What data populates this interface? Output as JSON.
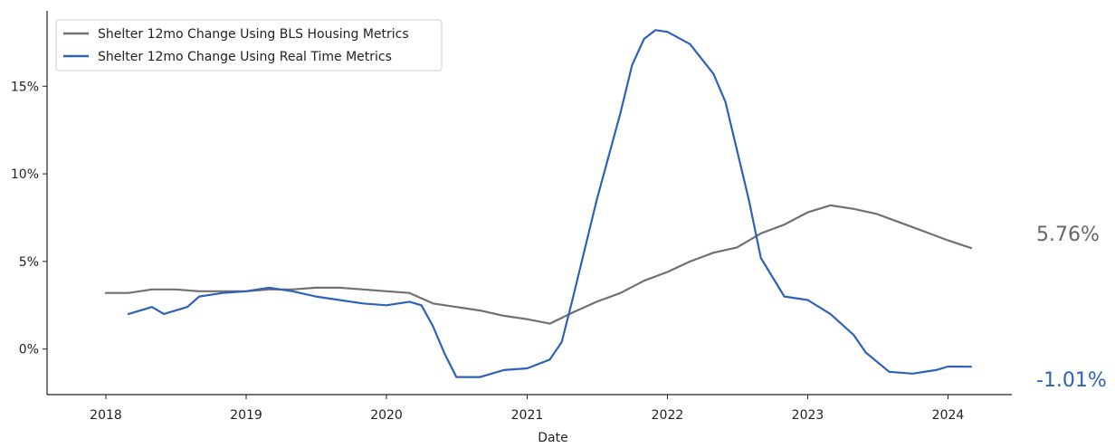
{
  "chart_data": {
    "type": "line",
    "xlabel": "Date",
    "ylabel": "",
    "xlim": [
      "2017-08-01",
      "2024-06-15"
    ],
    "ylim": [
      -2.6,
      19.3
    ],
    "x_ticks": [
      {
        "date": "2018-01-01",
        "label": "2018"
      },
      {
        "date": "2019-01-01",
        "label": "2019"
      },
      {
        "date": "2020-01-01",
        "label": "2020"
      },
      {
        "date": "2021-01-01",
        "label": "2021"
      },
      {
        "date": "2022-01-01",
        "label": "2022"
      },
      {
        "date": "2023-01-01",
        "label": "2023"
      },
      {
        "date": "2024-01-01",
        "label": "2024"
      }
    ],
    "y_ticks": [
      {
        "value": 0,
        "label": "0%"
      },
      {
        "value": 5,
        "label": "5%"
      },
      {
        "value": 10,
        "label": "10%"
      },
      {
        "value": 15,
        "label": "15%"
      }
    ],
    "grid": false,
    "legend_position": "top-left",
    "series": [
      {
        "name": "Shelter 12mo Change Using BLS Housing Metrics",
        "color": "#707070",
        "end_label": "5.76%",
        "end_label_color": "#666666",
        "points": [
          [
            "2018-01-01",
            3.2
          ],
          [
            "2018-03-01",
            3.2
          ],
          [
            "2018-05-01",
            3.4
          ],
          [
            "2018-07-01",
            3.4
          ],
          [
            "2018-09-01",
            3.3
          ],
          [
            "2018-11-01",
            3.3
          ],
          [
            "2019-01-01",
            3.3
          ],
          [
            "2019-03-01",
            3.4
          ],
          [
            "2019-05-01",
            3.4
          ],
          [
            "2019-07-01",
            3.5
          ],
          [
            "2019-09-01",
            3.5
          ],
          [
            "2019-11-01",
            3.4
          ],
          [
            "2020-01-01",
            3.3
          ],
          [
            "2020-03-01",
            3.2
          ],
          [
            "2020-05-01",
            2.6
          ],
          [
            "2020-07-01",
            2.4
          ],
          [
            "2020-09-01",
            2.2
          ],
          [
            "2020-11-01",
            1.9
          ],
          [
            "2021-01-01",
            1.7
          ],
          [
            "2021-03-01",
            1.45
          ],
          [
            "2021-05-01",
            2.1
          ],
          [
            "2021-07-01",
            2.7
          ],
          [
            "2021-09-01",
            3.2
          ],
          [
            "2021-11-01",
            3.9
          ],
          [
            "2022-01-01",
            4.4
          ],
          [
            "2022-03-01",
            5.0
          ],
          [
            "2022-05-01",
            5.5
          ],
          [
            "2022-07-01",
            5.8
          ],
          [
            "2022-09-01",
            6.6
          ],
          [
            "2022-11-01",
            7.1
          ],
          [
            "2023-01-01",
            7.8
          ],
          [
            "2023-03-01",
            8.2
          ],
          [
            "2023-05-01",
            8.0
          ],
          [
            "2023-07-01",
            7.7
          ],
          [
            "2023-09-01",
            7.2
          ],
          [
            "2023-11-01",
            6.7
          ],
          [
            "2024-01-01",
            6.2
          ],
          [
            "2024-03-01",
            5.76
          ]
        ]
      },
      {
        "name": "Shelter 12mo Change Using Real Time Metrics",
        "color": "#2e62b8",
        "end_label": "-1.01%",
        "end_label_color": "#2e62b8",
        "points": [
          [
            "2018-03-01",
            2.0
          ],
          [
            "2018-05-01",
            2.4
          ],
          [
            "2018-06-01",
            2.0
          ],
          [
            "2018-08-01",
            2.4
          ],
          [
            "2018-09-01",
            3.0
          ],
          [
            "2018-11-01",
            3.2
          ],
          [
            "2019-01-01",
            3.3
          ],
          [
            "2019-03-01",
            3.5
          ],
          [
            "2019-05-01",
            3.3
          ],
          [
            "2019-07-01",
            3.0
          ],
          [
            "2019-09-01",
            2.8
          ],
          [
            "2019-11-01",
            2.6
          ],
          [
            "2020-01-01",
            2.5
          ],
          [
            "2020-03-01",
            2.7
          ],
          [
            "2020-04-01",
            2.5
          ],
          [
            "2020-05-01",
            1.3
          ],
          [
            "2020-06-01",
            -0.3
          ],
          [
            "2020-07-01",
            -1.6
          ],
          [
            "2020-09-01",
            -1.6
          ],
          [
            "2020-11-01",
            -1.2
          ],
          [
            "2021-01-01",
            -1.1
          ],
          [
            "2021-03-01",
            -0.6
          ],
          [
            "2021-04-01",
            0.4
          ],
          [
            "2021-05-01",
            3.0
          ],
          [
            "2021-07-01",
            8.5
          ],
          [
            "2021-09-01",
            13.5
          ],
          [
            "2021-10-01",
            16.2
          ],
          [
            "2021-11-01",
            17.7
          ],
          [
            "2021-12-01",
            18.2
          ],
          [
            "2022-01-01",
            18.1
          ],
          [
            "2022-03-01",
            17.4
          ],
          [
            "2022-05-01",
            15.7
          ],
          [
            "2022-06-01",
            14.1
          ],
          [
            "2022-08-01",
            8.5
          ],
          [
            "2022-09-01",
            5.2
          ],
          [
            "2022-11-01",
            3.0
          ],
          [
            "2023-01-01",
            2.8
          ],
          [
            "2023-03-01",
            2.0
          ],
          [
            "2023-05-01",
            0.8
          ],
          [
            "2023-06-01",
            -0.2
          ],
          [
            "2023-08-01",
            -1.3
          ],
          [
            "2023-10-01",
            -1.4
          ],
          [
            "2023-12-01",
            -1.2
          ],
          [
            "2024-01-01",
            -1.0
          ],
          [
            "2024-03-01",
            -1.01
          ]
        ]
      }
    ]
  }
}
